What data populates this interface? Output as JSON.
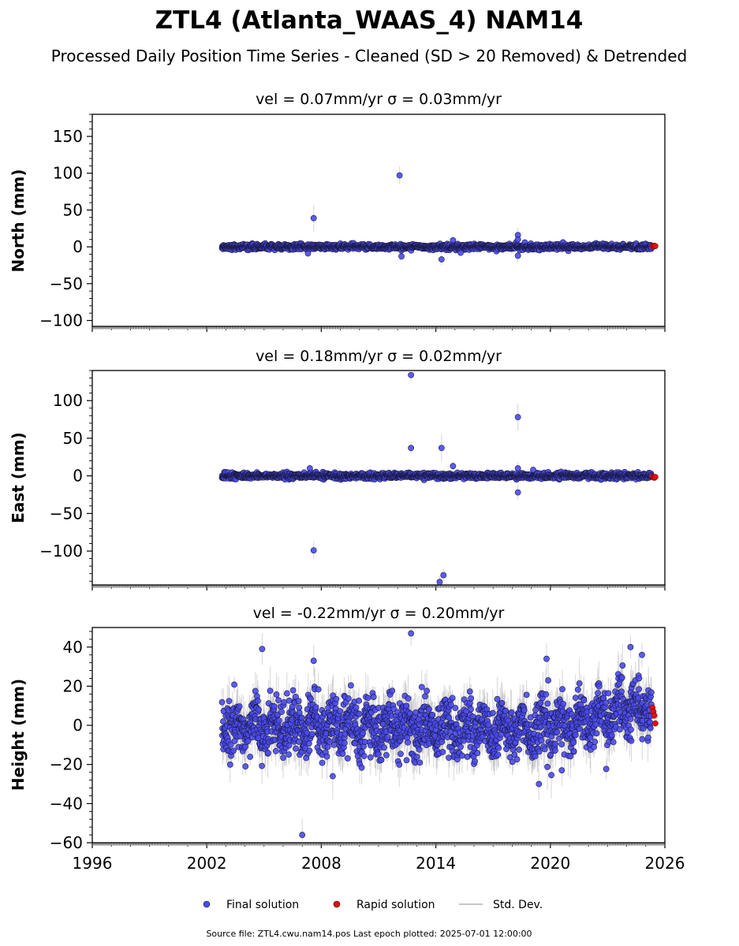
{
  "title": "ZTL4 (Atlanta_WAAS_4) NAM14",
  "subtitle": "Processed Daily Position Time Series - Cleaned (SD > 20 Removed) & Detrended",
  "legend": {
    "final": "Final solution",
    "rapid": "Rapid solution",
    "stddev": "Std. Dev."
  },
  "footer": "Source file: ZTL4.cwu.nam14.pos  Last epoch plotted: 2025-07-01 12:00:00",
  "colors": {
    "final": "#4a4af0",
    "final_edge": "#1a1a40",
    "rapid": "#e01010",
    "stddev": "#b4b4b4"
  },
  "chart_data": [
    {
      "type": "scatter",
      "panel": "north",
      "title": "vel = 0.07mm/yr   σ = 0.03mm/yr",
      "ylabel": "North (mm)",
      "xlim": [
        1996,
        2026
      ],
      "ylim": [
        -108,
        180
      ],
      "yticks": [
        -100,
        -50,
        0,
        50,
        100,
        150
      ],
      "ytick_labels": [
        "−100",
        "−50",
        "0",
        "50",
        "100",
        "150"
      ],
      "xticks": [
        1996,
        2002,
        2008,
        2014,
        2020,
        2026
      ],
      "xtick_labels": [],
      "data_range": [
        2002.8,
        2025.3
      ],
      "rapid_range": [
        2025.35,
        2025.5
      ],
      "typical_spread": 1.8,
      "typical_sd": 2.5,
      "rapid_values": [
        1.0,
        0.5,
        1.5,
        1.0
      ],
      "outliers": [
        {
          "x": 2007.6,
          "y": 39,
          "sd": 18
        },
        {
          "x": 2007.3,
          "y": -9,
          "sd": 4
        },
        {
          "x": 2012.1,
          "y": 97,
          "sd": 12
        },
        {
          "x": 2012.2,
          "y": -13,
          "sd": 6
        },
        {
          "x": 2014.3,
          "y": -17,
          "sd": 8
        },
        {
          "x": 2014.9,
          "y": 9,
          "sd": 5
        },
        {
          "x": 2015.3,
          "y": -8,
          "sd": 4
        },
        {
          "x": 2018.3,
          "y": 16,
          "sd": 10
        },
        {
          "x": 2018.3,
          "y": 10,
          "sd": 8
        },
        {
          "x": 2018.3,
          "y": -12,
          "sd": 8
        }
      ]
    },
    {
      "type": "scatter",
      "panel": "east",
      "title": "vel = 0.18mm/yr   σ = 0.02mm/yr",
      "ylabel": "East (mm)",
      "xlim": [
        1996,
        2026
      ],
      "ylim": [
        -145,
        140
      ],
      "yticks": [
        -100,
        -50,
        0,
        50,
        100
      ],
      "ytick_labels": [
        "−100",
        "−50",
        "0",
        "50",
        "100"
      ],
      "xticks": [
        1996,
        2002,
        2008,
        2014,
        2020,
        2026
      ],
      "xtick_labels": [],
      "data_range": [
        2002.8,
        2025.3
      ],
      "rapid_range": [
        2025.35,
        2025.5
      ],
      "typical_spread": 1.8,
      "typical_sd": 2.5,
      "rapid_values": [
        -1.0,
        -2.0,
        -2.5,
        -1.5
      ],
      "outliers": [
        {
          "x": 2007.6,
          "y": -99,
          "sd": 12
        },
        {
          "x": 2007.4,
          "y": 10,
          "sd": 6
        },
        {
          "x": 2012.7,
          "y": 37,
          "sd": 8
        },
        {
          "x": 2012.7,
          "y": 134,
          "sd": 8
        },
        {
          "x": 2014.3,
          "y": 37,
          "sd": 18
        },
        {
          "x": 2014.2,
          "y": -141,
          "sd": 8
        },
        {
          "x": 2014.4,
          "y": -132,
          "sd": 8
        },
        {
          "x": 2014.9,
          "y": 13,
          "sd": 6
        },
        {
          "x": 2018.3,
          "y": 78,
          "sd": 18
        },
        {
          "x": 2018.3,
          "y": -22,
          "sd": 10
        },
        {
          "x": 2018.3,
          "y": 10,
          "sd": 8
        },
        {
          "x": 2019.1,
          "y": 8,
          "sd": 5
        }
      ]
    },
    {
      "type": "scatter",
      "panel": "height",
      "title": "vel = -0.22mm/yr   σ = 0.20mm/yr",
      "ylabel": "Height (mm)",
      "xlim": [
        1996,
        2026
      ],
      "ylim": [
        -60,
        50
      ],
      "yticks": [
        -60,
        -40,
        -20,
        0,
        20,
        40
      ],
      "ytick_labels": [
        "−60",
        "−40",
        "−20",
        "0",
        "20",
        "40"
      ],
      "xticks": [
        1996,
        2002,
        2008,
        2014,
        2020,
        2026
      ],
      "xtick_labels": [
        "1996",
        "2002",
        "2008",
        "2014",
        "2020",
        "2026"
      ],
      "data_range": [
        2002.8,
        2025.3
      ],
      "rapid_range": [
        2025.35,
        2025.5
      ],
      "typical_spread": 7,
      "typical_sd": 6,
      "seasonal_amplitude": 5,
      "trend_points": [
        [
          2003,
          0
        ],
        [
          2019.5,
          -2
        ],
        [
          2025.3,
          10
        ]
      ],
      "rapid_values": [
        9,
        7,
        5,
        1
      ],
      "outliers": [
        {
          "x": 2007.0,
          "y": -56,
          "sd": 8
        },
        {
          "x": 2012.7,
          "y": 47,
          "sd": 6
        },
        {
          "x": 2004.9,
          "y": 39,
          "sd": 8
        },
        {
          "x": 2007.6,
          "y": 33,
          "sd": 8
        },
        {
          "x": 2008.6,
          "y": -26,
          "sd": 12
        },
        {
          "x": 2019.8,
          "y": 34,
          "sd": 8
        },
        {
          "x": 2019.4,
          "y": -30,
          "sd": 8
        },
        {
          "x": 2020.6,
          "y": -23,
          "sd": 8
        },
        {
          "x": 2024.2,
          "y": 40,
          "sd": 6
        },
        {
          "x": 2024.8,
          "y": 36,
          "sd": 6
        }
      ]
    }
  ]
}
